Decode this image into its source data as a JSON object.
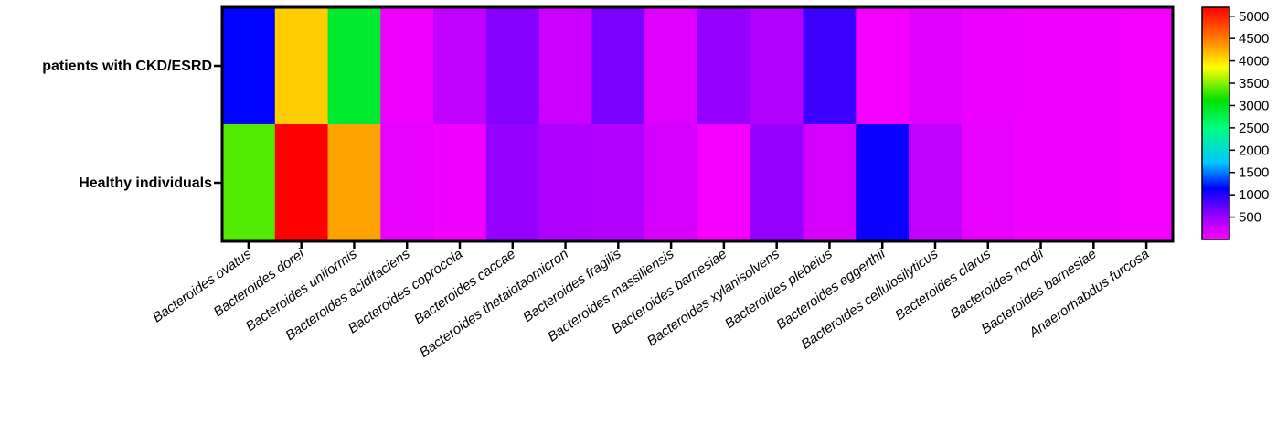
{
  "chart_data": {
    "type": "heatmap",
    "rows": [
      "patients with CKD/ESRD",
      "Healthy individuals"
    ],
    "columns": [
      "Bacteroides ovatus",
      "Bacteroides dorei",
      "Bacteroides uniformis",
      "Bacteroides acidifaciens",
      "Bacteroides coprocola",
      "Bacteroides caccae",
      "Bacteroides thetaiotaomicron",
      "Bacteroides fragilis",
      "Bacteroides massiliensis",
      "Bacteroides barnesiae",
      "Bacteroides xylanisolvens",
      "Bacteroides plebeius",
      "Bacteroides eggerthii",
      "Bacteroides cellulosilyticus",
      "Bacteroides clarus",
      "Bacteroides nordii",
      "Bacteroides barnesiae",
      "Anaerorhabdus furcosa"
    ],
    "values": [
      [
        1150,
        4100,
        2900,
        80,
        300,
        600,
        250,
        650,
        150,
        520,
        380,
        900,
        60,
        150,
        100,
        80,
        80,
        60
      ],
      [
        3350,
        5200,
        4300,
        120,
        80,
        520,
        400,
        380,
        200,
        50,
        520,
        200,
        1100,
        300,
        120,
        80,
        80,
        60
      ]
    ],
    "colorbar": {
      "min": 0,
      "max": 5200,
      "ticks": [
        500,
        1000,
        1500,
        2000,
        2500,
        3000,
        3500,
        4000,
        4500,
        5000
      ],
      "tick_labels": [
        "500",
        "1000",
        "1500",
        "2000",
        "2500",
        "3000",
        "3500",
        "4000",
        "4500",
        "5000"
      ]
    },
    "title": "",
    "xlabel": "",
    "ylabel": ""
  }
}
